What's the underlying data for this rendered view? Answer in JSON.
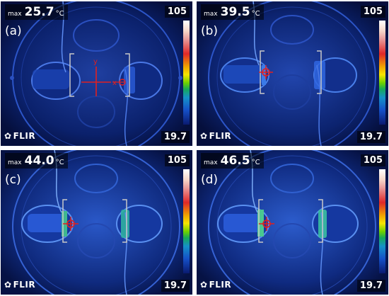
{
  "colors": {
    "background": "#06164a",
    "crosshair": "#e02020",
    "bracket": "#c8c8c8"
  },
  "panels": [
    {
      "label": "(a)",
      "max_label": "max",
      "max_value": "25.7",
      "unit": "°C",
      "scale_max": "105",
      "scale_min": "19.7",
      "brand": "FLIR",
      "axis_y": "y",
      "axis_x": "x",
      "heat": 0.0
    },
    {
      "label": "(b)",
      "max_label": "max",
      "max_value": "39.5",
      "unit": "°C",
      "scale_max": "105",
      "scale_min": "19.7",
      "brand": "FLIR",
      "axis_y": "",
      "axis_x": "",
      "heat": 0.35
    },
    {
      "label": "(c)",
      "max_label": "max",
      "max_value": "44.0",
      "unit": "°C",
      "scale_max": "105",
      "scale_min": "19.7",
      "brand": "FLIR",
      "axis_y": "",
      "axis_x": "",
      "heat": 0.75
    },
    {
      "label": "(d)",
      "max_label": "max",
      "max_value": "46.5",
      "unit": "°C",
      "scale_max": "105",
      "scale_min": "19.7",
      "brand": "FLIR",
      "axis_y": "",
      "axis_x": "",
      "heat": 1.0
    }
  ]
}
